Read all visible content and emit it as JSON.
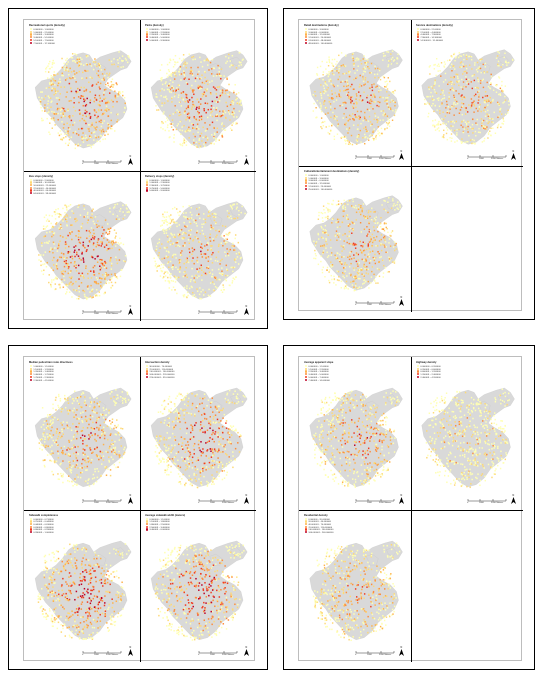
{
  "common": {
    "scale_ticks": [
      "0",
      "1600",
      "3200 Meters"
    ],
    "north_label": "N",
    "no_data_color": "#d9d9d9",
    "class_colors": [
      "#ffffb2",
      "#fed976",
      "#feb24c",
      "#fd8d3c",
      "#f03b20",
      "#bd0026"
    ]
  },
  "panels": [
    {
      "name": "panel-top-left",
      "maps": [
        {
          "title": "Recreational sports (density)",
          "legend": [
            "0.000000 - 1.000000",
            "1.000001 - 2.100000",
            "2.100001 - 3.400000",
            "3.400001 - 5.100000",
            "5.100001 - 7.500000",
            "7.500001 - 12.100000"
          ],
          "intensity": 0.72
        },
        {
          "title": "Parks (density)",
          "legend": [
            "0.000000 - 1.000000",
            "1.000001 - 2.200000",
            "2.200001 - 3.400000",
            "3.400001 - 5.000000",
            "5.000001 - 9.300000"
          ],
          "intensity": 0.62
        },
        {
          "title": "Bus stops (density)",
          "legend": [
            "0.000000 - 2.000000",
            "2.000001 - 10.000000",
            "10.000001 - 22.000000",
            "22.000001 - 40.000000",
            "40.000001 - 64.000000",
            "64.000001 - 99.000000"
          ],
          "intensity": 0.85
        },
        {
          "title": "Delivery stops (density)",
          "legend": [
            "0.000000 - 1.000000",
            "1.000001 - 2.300000",
            "2.300001 - 3.700000",
            "3.700001 - 5.600000",
            "5.600001 - 9.000000"
          ],
          "intensity": 0.45
        }
      ]
    },
    {
      "name": "panel-top-right",
      "maps": [
        {
          "title": "Retail destinations (density)",
          "legend": [
            "0.000000 - 3.000000",
            "3.000001 - 6.000000",
            "6.000001 - 12.000000",
            "12.000001 - 24.000000",
            "24.000001 - 48.000000",
            "48.000001 - 100.000000"
          ],
          "intensity": 0.6
        },
        {
          "title": "Service destinations (density)",
          "legend": [
            "0.000000 - 2.100000",
            "2.100001 - 4.400000",
            "4.400001 - 7.900000",
            "7.900001 - 14.300000",
            "14.300001 - 31.400000"
          ],
          "intensity": 0.5
        },
        {
          "title": "Cultural/entertainment destinations (density)",
          "legend": [
            "0.000000 - 1.000000",
            "1.000001 - 3.000000",
            "3.000001 - 6.000000",
            "6.000001 - 12.000000",
            "12.000001 - 25.000000",
            "25.000001 - 100.000000"
          ],
          "intensity": 0.55
        },
        null
      ]
    },
    {
      "name": "panel-bottom-left",
      "maps": [
        {
          "title": "Median pedestrian route directness",
          "legend": [
            "1.000000 - 1.100000",
            "1.100001 - 1.200000",
            "1.200001 - 1.400000",
            "1.400001 - 1.700000",
            "1.700001 - 2.300000",
            "2.300001 - 4.100000"
          ],
          "intensity": 0.58
        },
        {
          "title": "Intersection density",
          "legend": [
            "30.000000 - 70.000000",
            "70.000001 - 110.000000",
            "110.000001 - 160.000000",
            "160.000001 - 220.000000",
            "220.000001 - 310.000000"
          ],
          "intensity": 0.7
        },
        {
          "title": "Sidewalk completeness",
          "legend": [
            "0.000000 - 0.210000",
            "0.210001 - 0.440000",
            "0.440001 - 0.630000",
            "0.630001 - 0.800000",
            "0.800001 - 0.930000",
            "0.930001 - 1.000000"
          ],
          "intensity": 0.88
        },
        {
          "title": "Average sidewalk width (meters)",
          "legend": [
            "0.000000 - 1.100000",
            "1.100001 - 1.800000",
            "1.800001 - 2.500000",
            "2.500001 - 3.400000",
            "3.400001 - 6.000000"
          ],
          "intensity": 0.82
        }
      ]
    },
    {
      "name": "panel-bottom-right",
      "maps": [
        {
          "title": "Average apparent slope",
          "legend": [
            "0.000000 - 1.100000",
            "1.100001 - 2.200000",
            "2.200001 - 3.400000",
            "3.400001 - 5.000000",
            "5.000001 - 7.400000",
            "7.400001 - 14.000000"
          ],
          "intensity": 0.62
        },
        {
          "title": "Highway density",
          "legend": [
            "0.000000 - 0.200000",
            "0.200001 - 0.600000",
            "0.600001 - 1.200000",
            "1.200001 - 2.400000",
            "2.400001 - 4.200000"
          ],
          "intensity": 0.18
        },
        {
          "title": "Residential density",
          "legend": [
            "0.000000 - 20.000000",
            "20.000001 - 40.000000",
            "40.000001 - 70.000000",
            "70.000001 - 110.000000",
            "110.000001 - 160.000000",
            "160.000001 - 240.000000"
          ],
          "intensity": 0.52
        },
        null
      ]
    }
  ]
}
